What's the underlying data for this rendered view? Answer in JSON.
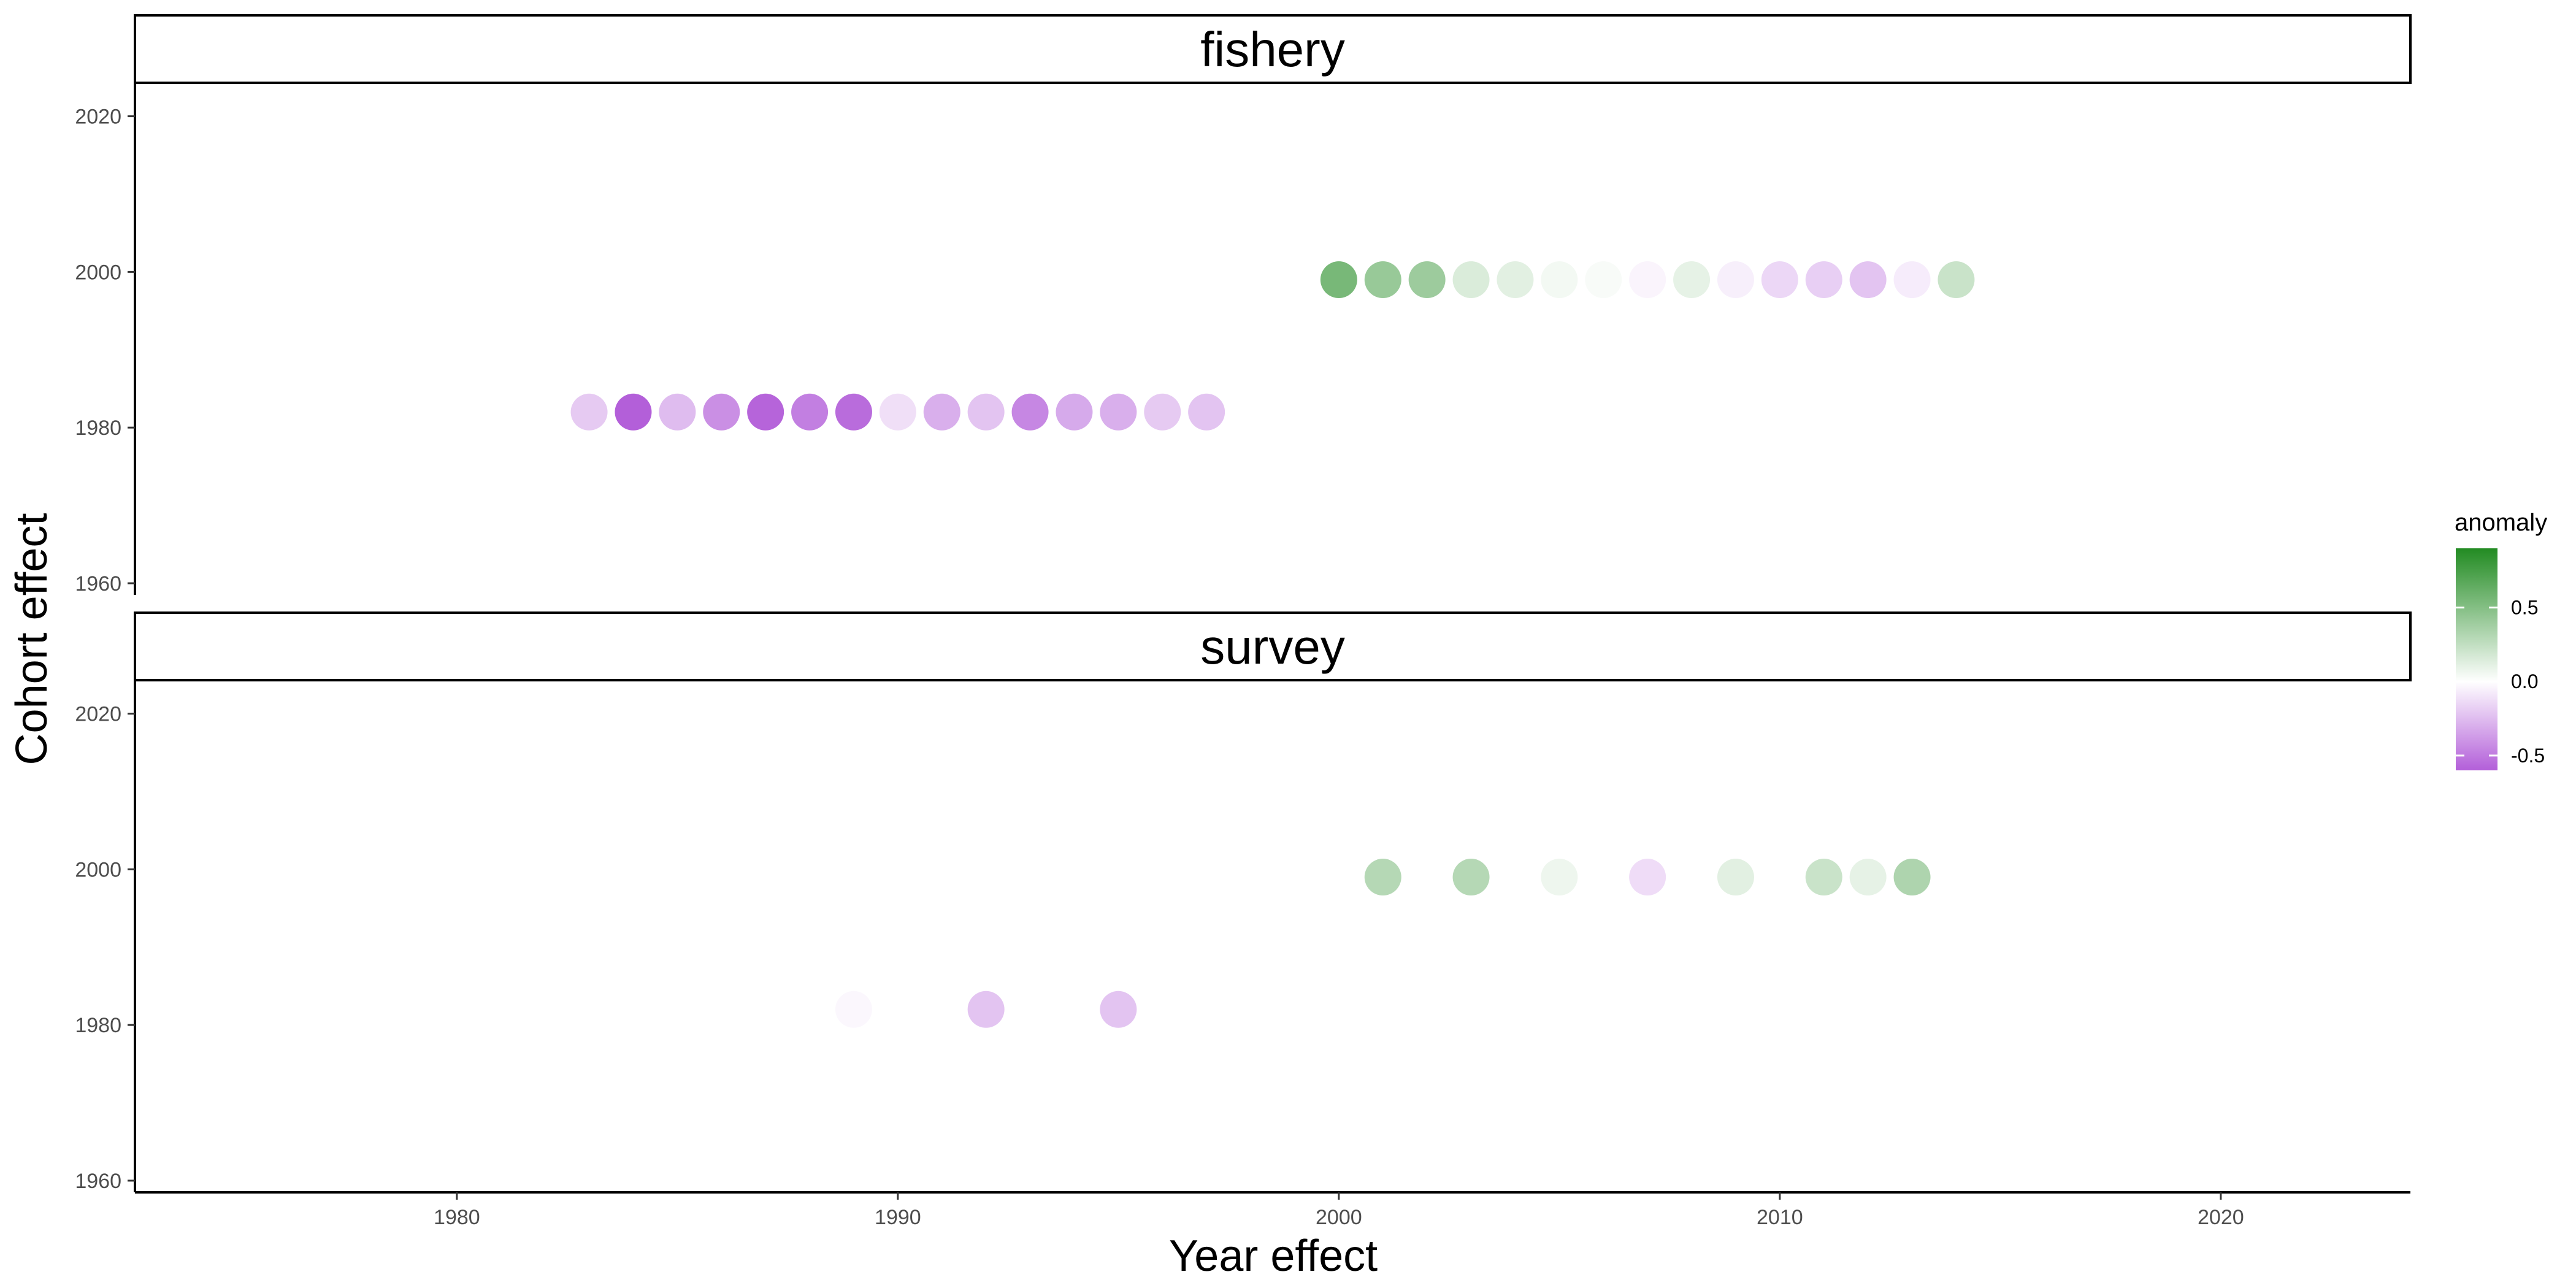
{
  "chart_data": {
    "type": "scatter",
    "xlabel": "Year effect",
    "ylabel": "Cohort effect",
    "xlim": [
      1972.7,
      2024.3
    ],
    "ylim": [
      1958.5,
      2024.3
    ],
    "x_ticks": [
      1980,
      1990,
      2000,
      2010,
      2020
    ],
    "y_ticks": [
      1960,
      1980,
      2000,
      2020
    ],
    "grid": false,
    "legend": {
      "title": "anomaly",
      "placement": "right",
      "low_color": "#b35fd9",
      "mid_color": "#ffffff",
      "high_color": "#228b22",
      "range": [
        -0.6,
        0.9
      ],
      "ticks": [
        {
          "value": 0.5,
          "label": "0.5"
        },
        {
          "value": 0.0,
          "label": "0.0"
        },
        {
          "value": -0.5,
          "label": "-0.5"
        }
      ]
    },
    "panels": [
      {
        "strip": "fishery",
        "points": [
          {
            "x": 1983,
            "y": 1982,
            "anomaly": -0.2
          },
          {
            "x": 1984,
            "y": 1982,
            "anomaly": -0.6
          },
          {
            "x": 1985,
            "y": 1982,
            "anomaly": -0.25
          },
          {
            "x": 1986,
            "y": 1982,
            "anomaly": -0.42
          },
          {
            "x": 1987,
            "y": 1982,
            "anomaly": -0.58
          },
          {
            "x": 1988,
            "y": 1982,
            "anomaly": -0.48
          },
          {
            "x": 1989,
            "y": 1982,
            "anomaly": -0.55
          },
          {
            "x": 1990,
            "y": 1982,
            "anomaly": -0.12
          },
          {
            "x": 1991,
            "y": 1982,
            "anomaly": -0.3
          },
          {
            "x": 1992,
            "y": 1982,
            "anomaly": -0.22
          },
          {
            "x": 1993,
            "y": 1982,
            "anomaly": -0.45
          },
          {
            "x": 1994,
            "y": 1982,
            "anomaly": -0.32
          },
          {
            "x": 1995,
            "y": 1982,
            "anomaly": -0.3
          },
          {
            "x": 1996,
            "y": 1982,
            "anomaly": -0.2
          },
          {
            "x": 1997,
            "y": 1982,
            "anomaly": -0.22
          },
          {
            "x": 2000,
            "y": 1999,
            "anomaly": 0.55
          },
          {
            "x": 2001,
            "y": 1999,
            "anomaly": 0.42
          },
          {
            "x": 2002,
            "y": 1999,
            "anomaly": 0.4
          },
          {
            "x": 2003,
            "y": 1999,
            "anomaly": 0.15
          },
          {
            "x": 2004,
            "y": 1999,
            "anomaly": 0.12
          },
          {
            "x": 2005,
            "y": 1999,
            "anomaly": 0.05
          },
          {
            "x": 2006,
            "y": 1999,
            "anomaly": 0.03
          },
          {
            "x": 2007,
            "y": 1999,
            "anomaly": -0.04
          },
          {
            "x": 2008,
            "y": 1999,
            "anomaly": 0.1
          },
          {
            "x": 2009,
            "y": 1999,
            "anomaly": -0.06
          },
          {
            "x": 2010,
            "y": 1999,
            "anomaly": -0.15
          },
          {
            "x": 2011,
            "y": 1999,
            "anomaly": -0.18
          },
          {
            "x": 2012,
            "y": 1999,
            "anomaly": -0.22
          },
          {
            "x": 2013,
            "y": 1999,
            "anomaly": -0.07
          },
          {
            "x": 2014,
            "y": 1999,
            "anomaly": 0.22
          }
        ]
      },
      {
        "strip": "survey",
        "points": [
          {
            "x": 1989,
            "y": 1982,
            "anomaly": -0.03
          },
          {
            "x": 1992,
            "y": 1982,
            "anomaly": -0.22
          },
          {
            "x": 1995,
            "y": 1982,
            "anomaly": -0.22
          },
          {
            "x": 2001,
            "y": 1999,
            "anomaly": 0.3
          },
          {
            "x": 2003,
            "y": 1999,
            "anomaly": 0.3
          },
          {
            "x": 2005,
            "y": 1999,
            "anomaly": 0.07
          },
          {
            "x": 2007,
            "y": 1999,
            "anomaly": -0.13
          },
          {
            "x": 2009,
            "y": 1999,
            "anomaly": 0.12
          },
          {
            "x": 2011,
            "y": 1999,
            "anomaly": 0.22
          },
          {
            "x": 2012,
            "y": 1999,
            "anomaly": 0.1
          },
          {
            "x": 2013,
            "y": 1999,
            "anomaly": 0.33
          }
        ]
      }
    ]
  }
}
